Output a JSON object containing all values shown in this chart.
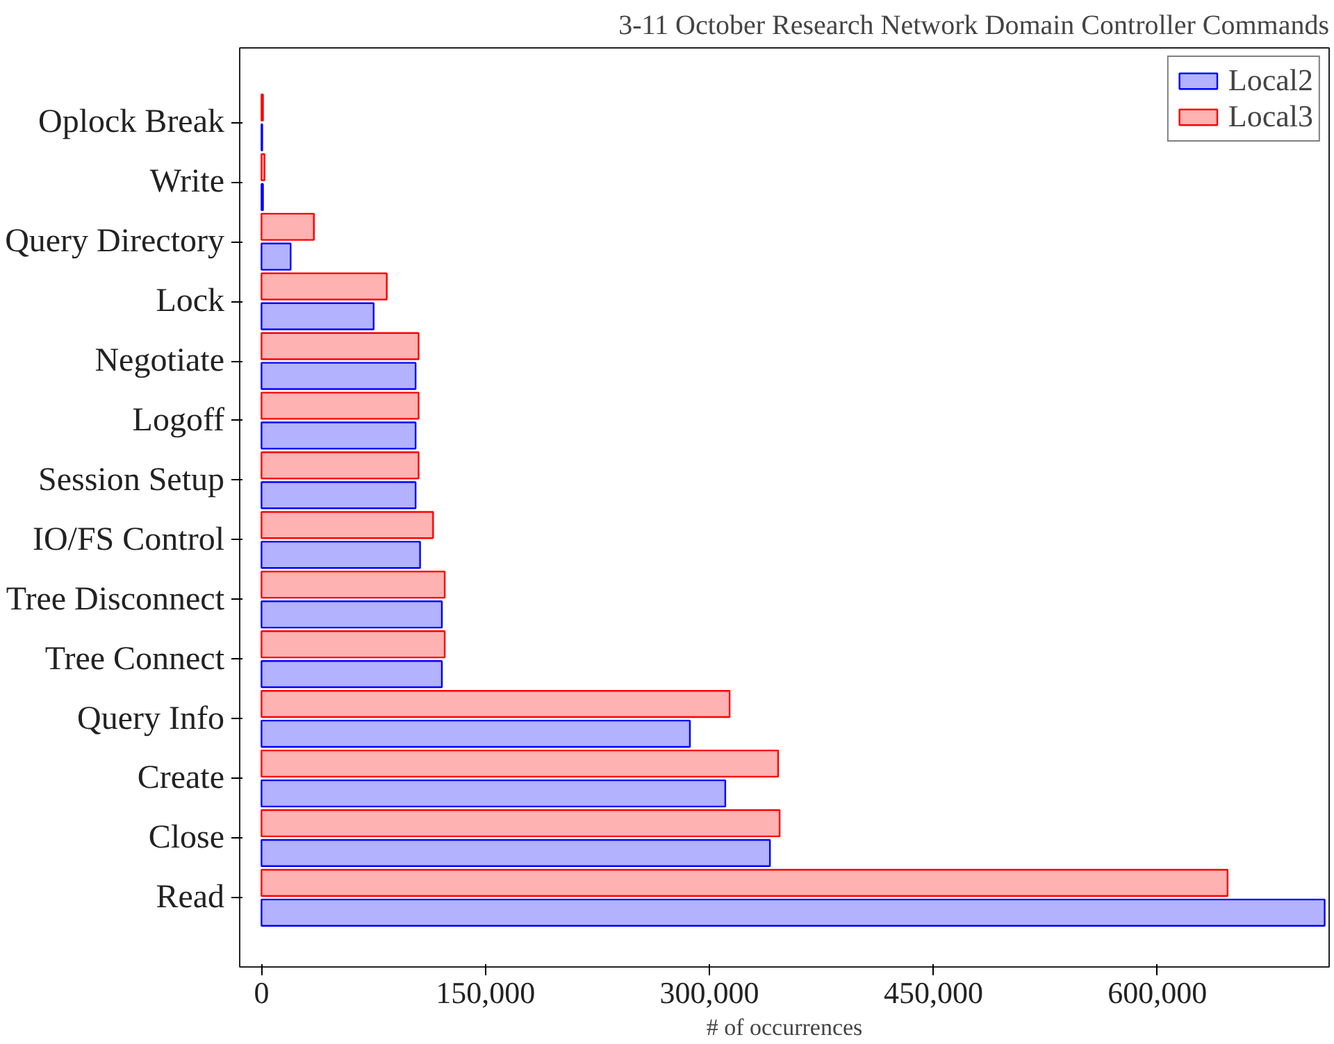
{
  "chart_data": {
    "type": "bar",
    "orientation": "horizontal",
    "title": "3-11 October Research Network Domain Controller Commands",
    "xlabel": "# of occurrences",
    "categories": [
      "Oplock Break",
      "Write",
      "Query Directory",
      "Lock",
      "Negotiate",
      "Logoff",
      "Session Setup",
      "IO/FS Control",
      "Tree Disconnect",
      "Tree Connect",
      "Query Info",
      "Create",
      "Close",
      "Read"
    ],
    "series": [
      {
        "name": "Local2",
        "color": "#0000ff",
        "values": [
          500,
          1000,
          19500,
          75100,
          103200,
          103200,
          103200,
          106200,
          120800,
          120800,
          286900,
          310600,
          340500,
          712000
        ]
      },
      {
        "name": "Local3",
        "color": "#ff0000",
        "values": [
          1000,
          2000,
          35100,
          83900,
          105200,
          105200,
          105200,
          114900,
          122700,
          122700,
          313500,
          346000,
          347000,
          647000
        ]
      }
    ],
    "xlim": [
      -14600,
      715000
    ],
    "xticks": [
      {
        "value": 0,
        "label": "0"
      },
      {
        "value": 150000,
        "label": "150,000"
      },
      {
        "value": 300000,
        "label": "300,000"
      },
      {
        "value": 450000,
        "label": "450,000"
      },
      {
        "value": 600000,
        "label": "600,000"
      }
    ],
    "grid": false,
    "legend": "top right"
  }
}
